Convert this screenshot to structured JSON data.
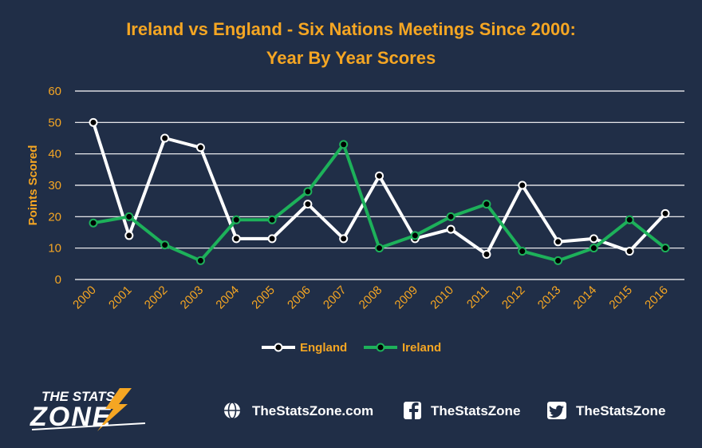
{
  "chart_data": {
    "type": "line",
    "title": "Ireland vs England - Six Nations Meetings Since 2000:",
    "subtitle": "Year By Year Scores",
    "xlabel": "",
    "ylabel": "Points Scored",
    "categories": [
      "2000",
      "2001",
      "2002",
      "2003",
      "2004",
      "2005",
      "2006",
      "2007",
      "2008",
      "2009",
      "2010",
      "2011",
      "2012",
      "2013",
      "2014",
      "2015",
      "2016"
    ],
    "ylim": [
      0,
      60
    ],
    "yticks": [
      0,
      10,
      20,
      30,
      40,
      50,
      60
    ],
    "grid": true,
    "legend_position": "bottom",
    "series": [
      {
        "name": "England",
        "color": "#ffffff",
        "values": [
          50,
          14,
          45,
          42,
          13,
          13,
          24,
          13,
          33,
          13,
          16,
          8,
          30,
          12,
          13,
          9,
          21
        ]
      },
      {
        "name": "Ireland",
        "color": "#1db15a",
        "values": [
          18,
          20,
          11,
          6,
          19,
          19,
          28,
          43,
          10,
          14,
          20,
          24,
          9,
          6,
          10,
          19,
          10
        ]
      }
    ]
  },
  "footer": {
    "logo_line1": "THE STATS",
    "logo_line2": "ZONE",
    "website": "TheStatsZone.com",
    "facebook": "TheStatsZone",
    "twitter": "TheStatsZone",
    "website_icon": "globe-icon",
    "facebook_icon": "facebook-icon",
    "twitter_icon": "twitter-icon"
  },
  "colors": {
    "background": "#202e47",
    "accent": "#f5a623",
    "grid": "#ffffff"
  }
}
